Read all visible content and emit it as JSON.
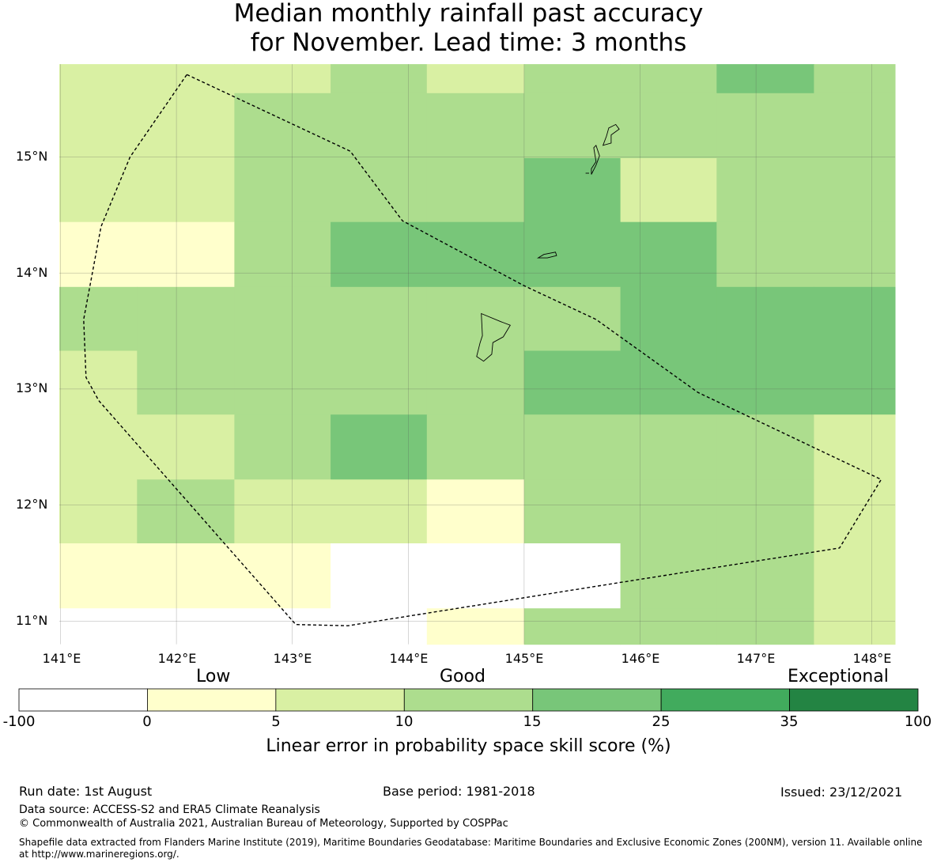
{
  "title": {
    "line1": "Median monthly rainfall past accuracy",
    "line2": "for November. Lead time: 3 months"
  },
  "map": {
    "lat_labels": [
      "15°N",
      "14°N",
      "13°N",
      "12°N",
      "11°N"
    ],
    "lon_labels": [
      "141°E",
      "142°E",
      "143°E",
      "144°E",
      "145°E",
      "146°E",
      "147°E",
      "148°E"
    ],
    "lon_ticks": [
      141,
      142,
      143,
      144,
      145,
      146,
      147,
      148
    ],
    "lat_ticks": [
      15,
      14,
      13,
      12,
      11
    ],
    "grid_columns": [
      140.99,
      141.66,
      142.5,
      143.33,
      144.16,
      145.0,
      145.83,
      146.66,
      147.5,
      148.2
    ],
    "grid_rows": [
      15.8,
      15.55,
      14.99,
      14.44,
      13.88,
      13.33,
      12.78,
      12.22,
      11.67,
      11.11,
      10.8
    ],
    "skill_classes": [
      [
        1,
        1,
        1,
        2,
        1,
        2,
        2,
        3,
        2
      ],
      [
        1,
        1,
        2,
        2,
        2,
        2,
        2,
        2,
        2
      ],
      [
        1,
        1,
        2,
        2,
        2,
        3,
        1,
        2,
        2
      ],
      [
        0,
        0,
        2,
        3,
        3,
        3,
        3,
        2,
        2
      ],
      [
        2,
        2,
        2,
        2,
        2,
        2,
        3,
        3,
        3
      ],
      [
        1,
        2,
        2,
        2,
        2,
        3,
        3,
        3,
        3
      ],
      [
        1,
        1,
        2,
        3,
        2,
        2,
        2,
        2,
        1
      ],
      [
        1,
        2,
        1,
        1,
        0,
        2,
        2,
        2,
        1
      ],
      [
        0,
        0,
        0,
        -1,
        -1,
        -1,
        2,
        2,
        1
      ],
      [
        -1,
        -1,
        -1,
        -1,
        0,
        2,
        2,
        2,
        1
      ]
    ],
    "class_colors": {
      "-1": "#ffffff",
      "0": "#ffffcc",
      "1": "#d9f0a3",
      "2": "#addd8e",
      "3": "#78c679"
    },
    "eez_boundary": [
      [
        142.09,
        15.71
      ],
      [
        143.5,
        15.05
      ],
      [
        143.95,
        14.45
      ],
      [
        145.0,
        13.89
      ],
      [
        145.62,
        13.6
      ],
      [
        146.5,
        12.97
      ],
      [
        148.08,
        12.22
      ],
      [
        147.72,
        11.63
      ],
      [
        146.0,
        11.36
      ],
      [
        143.48,
        10.96
      ],
      [
        143.03,
        10.97
      ],
      [
        141.33,
        12.9
      ],
      [
        141.22,
        13.1
      ],
      [
        141.2,
        13.6
      ],
      [
        141.35,
        14.4
      ],
      [
        141.6,
        15.0
      ]
    ],
    "islands": [
      {
        "name": "Guam",
        "points": [
          [
            144.63,
            13.65
          ],
          [
            144.8,
            13.58
          ],
          [
            144.88,
            13.55
          ],
          [
            144.82,
            13.45
          ],
          [
            144.73,
            13.4
          ],
          [
            144.72,
            13.3
          ],
          [
            144.65,
            13.24
          ],
          [
            144.59,
            13.28
          ],
          [
            144.62,
            13.4
          ],
          [
            144.64,
            13.46
          ]
        ]
      },
      {
        "name": "Rota",
        "points": [
          [
            145.12,
            14.13
          ],
          [
            145.17,
            14.16
          ],
          [
            145.27,
            14.18
          ],
          [
            145.28,
            14.15
          ],
          [
            145.2,
            14.13
          ]
        ]
      },
      {
        "name": "Tinian",
        "points": [
          [
            145.58,
            14.85
          ],
          [
            145.62,
            14.93
          ],
          [
            145.65,
            15.01
          ],
          [
            145.62,
            15.1
          ],
          [
            145.6,
            15.08
          ],
          [
            145.62,
            14.96
          ],
          [
            145.58,
            14.9
          ]
        ]
      },
      {
        "name": "Saipan",
        "points": [
          [
            145.68,
            15.1
          ],
          [
            145.71,
            15.18
          ],
          [
            145.73,
            15.25
          ],
          [
            145.79,
            15.28
          ],
          [
            145.82,
            15.24
          ],
          [
            145.75,
            15.19
          ],
          [
            145.75,
            15.12
          ]
        ]
      },
      {
        "name": "Aguijan",
        "points": [
          [
            145.53,
            14.86
          ],
          [
            145.56,
            14.86
          ]
        ]
      }
    ]
  },
  "colorbar": {
    "category_labels": [
      "Low",
      "Good",
      "Exceptional"
    ],
    "ticks": [
      "-100",
      "0",
      "5",
      "10",
      "15",
      "25",
      "35",
      "100"
    ],
    "colors": [
      "#ffffff",
      "#ffffcc",
      "#d9f0a3",
      "#addd8e",
      "#78c679",
      "#41ab5d",
      "#238443"
    ],
    "label": "Linear error in probability space skill score (%)"
  },
  "footer": {
    "run_date": "Run date: 1st August",
    "base_period": "Base period: 1981-2018",
    "issued": "Issued: 23/12/2021",
    "data_source": "Data source: ACCESS-S2 and ERA5 Climate Reanalysis",
    "copyright": "© Commonwealth of Australia 2021, Australian Bureau of Meteorology, Supported by COSPPac",
    "shapefile": "Shapefile data extracted from Flanders Marine Institute (2019), Maritime Boundaries Geodatabase: Maritime Boundaries and Exclusive Economic Zones (200NM), version 11. Available online at http://www.marineregions.org/."
  }
}
